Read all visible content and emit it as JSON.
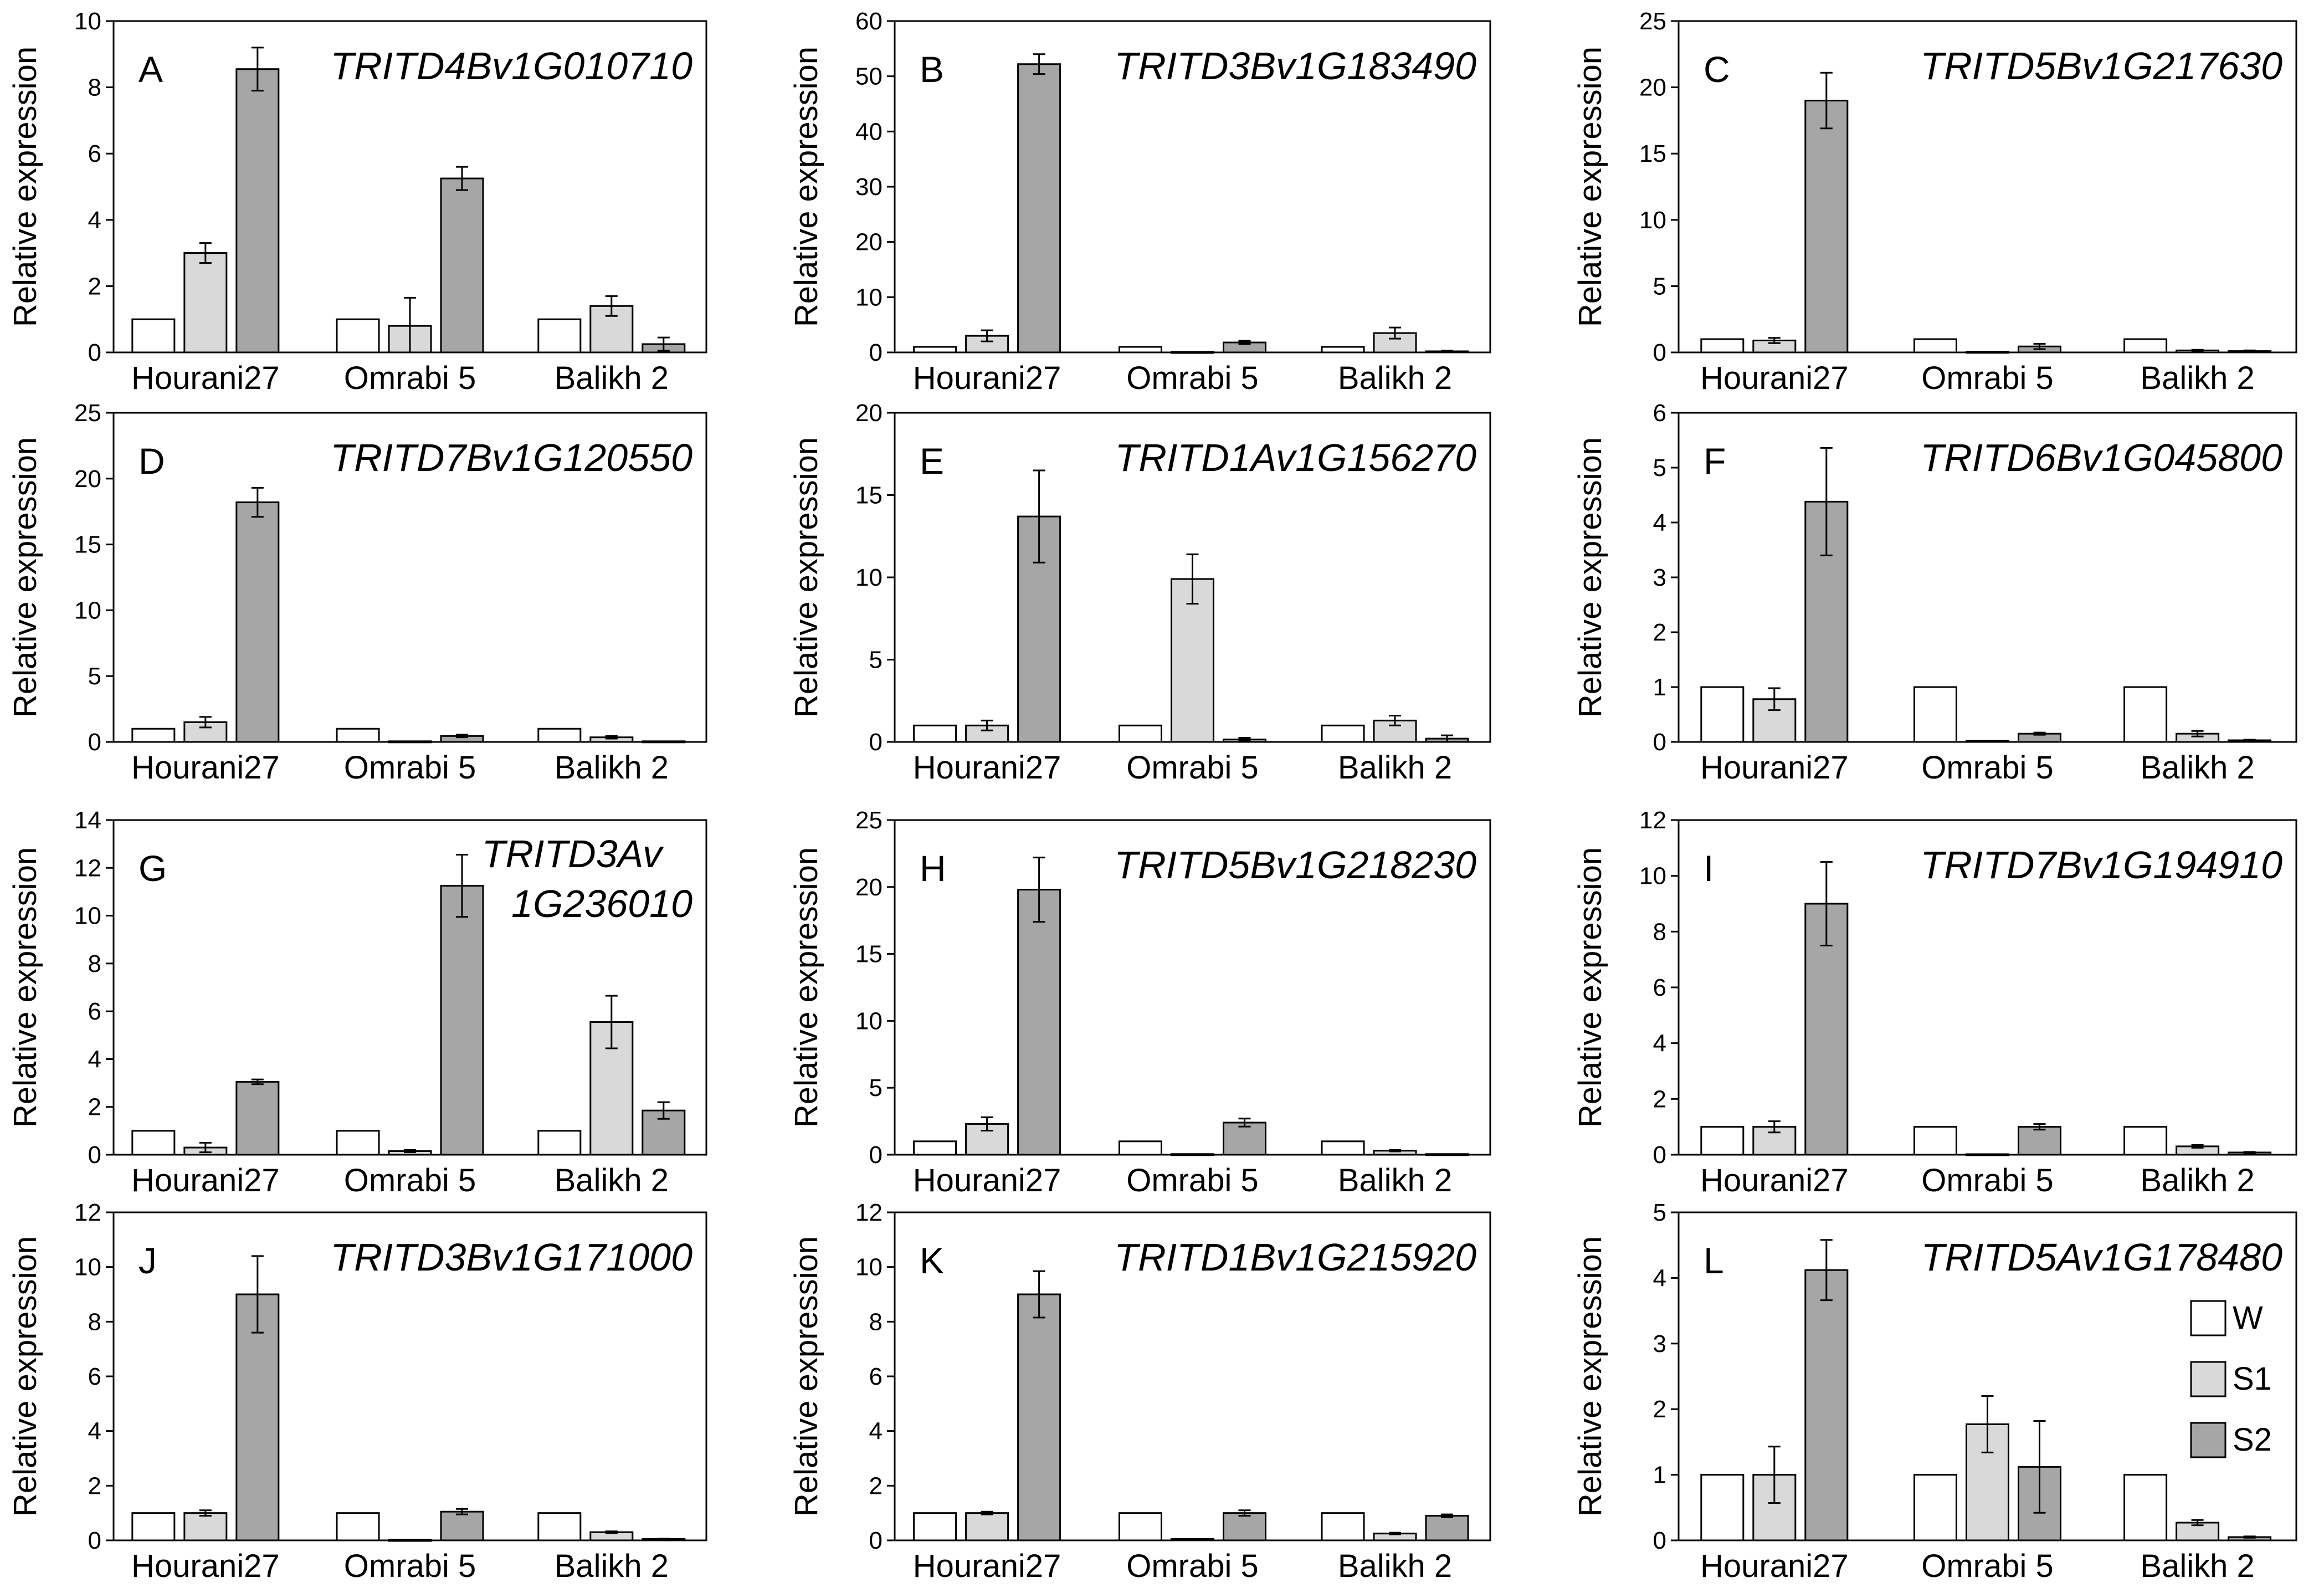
{
  "chart_data": [
    {
      "panel": "A",
      "gene": [
        "TRITD4Bv1G010710"
      ],
      "type": "bar",
      "ylabel": "Relative expression",
      "ylim": [
        0,
        10
      ],
      "yticks": [
        0,
        2,
        4,
        6,
        8,
        10
      ],
      "categories": [
        "Hourani27",
        "Omrabi 5",
        "Balikh 2"
      ],
      "series": [
        {
          "name": "W",
          "values": [
            1,
            1,
            1
          ],
          "errors": [
            0,
            0,
            0
          ]
        },
        {
          "name": "S1",
          "values": [
            3.0,
            0.8,
            1.4
          ],
          "errors": [
            0.3,
            0.85,
            0.3
          ]
        },
        {
          "name": "S2",
          "values": [
            8.55,
            5.25,
            0.25
          ],
          "errors": [
            0.65,
            0.35,
            0.2
          ]
        }
      ]
    },
    {
      "panel": "B",
      "gene": [
        "TRITD3Bv1G183490"
      ],
      "type": "bar",
      "ylabel": "Relative expression",
      "ylim": [
        0,
        60
      ],
      "yticks": [
        0,
        10,
        20,
        30,
        40,
        50,
        60
      ],
      "categories": [
        "Hourani27",
        "Omrabi 5",
        "Balikh 2"
      ],
      "series": [
        {
          "name": "W",
          "values": [
            1,
            1,
            1
          ],
          "errors": [
            0,
            0,
            0
          ]
        },
        {
          "name": "S1",
          "values": [
            3.0,
            0.1,
            3.5
          ],
          "errors": [
            1.0,
            0,
            1.0
          ]
        },
        {
          "name": "S2",
          "values": [
            52.2,
            1.8,
            0.2
          ],
          "errors": [
            1.8,
            0.3,
            0.1
          ]
        }
      ]
    },
    {
      "panel": "C",
      "gene": [
        "TRITD5Bv1G217630"
      ],
      "type": "bar",
      "ylabel": "Relative expression",
      "ylim": [
        0,
        25
      ],
      "yticks": [
        0,
        5,
        10,
        15,
        20,
        25
      ],
      "categories": [
        "Hourani27",
        "Omrabi 5",
        "Balikh 2"
      ],
      "series": [
        {
          "name": "W",
          "values": [
            1,
            1,
            1
          ],
          "errors": [
            0,
            0,
            0
          ]
        },
        {
          "name": "S1",
          "values": [
            0.9,
            0.05,
            0.15
          ],
          "errors": [
            0.2,
            0,
            0.05
          ]
        },
        {
          "name": "S2",
          "values": [
            19.0,
            0.45,
            0.1
          ],
          "errors": [
            2.1,
            0.2,
            0.05
          ]
        }
      ]
    },
    {
      "panel": "D",
      "gene": [
        "TRITD7Bv1G120550"
      ],
      "type": "bar",
      "ylabel": "Relative expression",
      "ylim": [
        0,
        25
      ],
      "yticks": [
        0,
        5,
        10,
        15,
        20,
        25
      ],
      "categories": [
        "Hourani27",
        "Omrabi 5",
        "Balikh 2"
      ],
      "series": [
        {
          "name": "W",
          "values": [
            1,
            1,
            1
          ],
          "errors": [
            0,
            0,
            0
          ]
        },
        {
          "name": "S1",
          "values": [
            1.5,
            0.05,
            0.35
          ],
          "errors": [
            0.4,
            0,
            0.1
          ]
        },
        {
          "name": "S2",
          "values": [
            18.2,
            0.45,
            0.05
          ],
          "errors": [
            1.1,
            0.1,
            0
          ]
        }
      ]
    },
    {
      "panel": "E",
      "gene": [
        "TRITD1Av1G156270"
      ],
      "type": "bar",
      "ylabel": "Relative expression",
      "ylim": [
        0,
        20
      ],
      "yticks": [
        0,
        5,
        10,
        15,
        20
      ],
      "categories": [
        "Hourani27",
        "Omrabi 5",
        "Balikh 2"
      ],
      "series": [
        {
          "name": "W",
          "values": [
            1,
            1,
            1
          ],
          "errors": [
            0,
            0,
            0
          ]
        },
        {
          "name": "S1",
          "values": [
            1.0,
            9.9,
            1.3
          ],
          "errors": [
            0.3,
            1.5,
            0.3
          ]
        },
        {
          "name": "S2",
          "values": [
            13.7,
            0.15,
            0.2
          ],
          "errors": [
            2.8,
            0.1,
            0.2
          ]
        }
      ]
    },
    {
      "panel": "F",
      "gene": [
        "TRITD6Bv1G045800"
      ],
      "type": "bar",
      "ylabel": "Relative expression",
      "ylim": [
        0,
        6
      ],
      "yticks": [
        0,
        1,
        2,
        3,
        4,
        5,
        6
      ],
      "categories": [
        "Hourani27",
        "Omrabi 5",
        "Balikh 2"
      ],
      "series": [
        {
          "name": "W",
          "values": [
            1,
            1,
            1
          ],
          "errors": [
            0,
            0,
            0
          ]
        },
        {
          "name": "S1",
          "values": [
            0.78,
            0.02,
            0.15
          ],
          "errors": [
            0.2,
            0,
            0.05
          ]
        },
        {
          "name": "S2",
          "values": [
            4.38,
            0.15,
            0.03
          ],
          "errors": [
            0.98,
            0.02,
            0.01
          ]
        }
      ]
    },
    {
      "panel": "G",
      "gene": [
        "TRITD3Av",
        "1G236010"
      ],
      "type": "bar",
      "ylabel": "Relative expression",
      "ylim": [
        0,
        14
      ],
      "yticks": [
        0,
        2,
        4,
        6,
        8,
        10,
        12,
        14
      ],
      "categories": [
        "Hourani27",
        "Omrabi 5",
        "Balikh 2"
      ],
      "series": [
        {
          "name": "W",
          "values": [
            1,
            1,
            1
          ],
          "errors": [
            0,
            0,
            0
          ]
        },
        {
          "name": "S1",
          "values": [
            0.3,
            0.15,
            5.55
          ],
          "errors": [
            0.2,
            0.05,
            1.1
          ]
        },
        {
          "name": "S2",
          "values": [
            3.05,
            11.25,
            1.85
          ],
          "errors": [
            0.1,
            1.3,
            0.35
          ]
        }
      ]
    },
    {
      "panel": "H",
      "gene": [
        "TRITD5Bv1G218230"
      ],
      "type": "bar",
      "ylabel": "Relative expression",
      "ylim": [
        0,
        25
      ],
      "yticks": [
        0,
        5,
        10,
        15,
        20,
        25
      ],
      "categories": [
        "Hourani27",
        "Omrabi 5",
        "Balikh 2"
      ],
      "series": [
        {
          "name": "W",
          "values": [
            1,
            1,
            1
          ],
          "errors": [
            0,
            0,
            0
          ]
        },
        {
          "name": "S1",
          "values": [
            2.3,
            0.05,
            0.3
          ],
          "errors": [
            0.5,
            0,
            0.05
          ]
        },
        {
          "name": "S2",
          "values": [
            19.8,
            2.4,
            0.05
          ],
          "errors": [
            2.4,
            0.3,
            0
          ]
        }
      ]
    },
    {
      "panel": "I",
      "gene": [
        "TRITD7Bv1G194910"
      ],
      "type": "bar",
      "ylabel": "Relative expression",
      "ylim": [
        0,
        12
      ],
      "yticks": [
        0,
        2,
        4,
        6,
        8,
        10,
        12
      ],
      "categories": [
        "Hourani27",
        "Omrabi 5",
        "Balikh 2"
      ],
      "series": [
        {
          "name": "W",
          "values": [
            1,
            1,
            1
          ],
          "errors": [
            0,
            0,
            0
          ]
        },
        {
          "name": "S1",
          "values": [
            1.0,
            0.02,
            0.3
          ],
          "errors": [
            0.2,
            0,
            0.05
          ]
        },
        {
          "name": "S2",
          "values": [
            9.0,
            1.0,
            0.08
          ],
          "errors": [
            1.5,
            0.1,
            0.02
          ]
        }
      ]
    },
    {
      "panel": "J",
      "gene": [
        "TRITD3Bv1G171000"
      ],
      "type": "bar",
      "ylabel": "Relative expression",
      "ylim": [
        0,
        12
      ],
      "yticks": [
        0,
        2,
        4,
        6,
        8,
        10,
        12
      ],
      "categories": [
        "Hourani27",
        "Omrabi 5",
        "Balikh 2"
      ],
      "series": [
        {
          "name": "W",
          "values": [
            1,
            1,
            1
          ],
          "errors": [
            0,
            0,
            0
          ]
        },
        {
          "name": "S1",
          "values": [
            1.0,
            0.02,
            0.3
          ],
          "errors": [
            0.1,
            0,
            0.03
          ]
        },
        {
          "name": "S2",
          "values": [
            9.0,
            1.05,
            0.05
          ],
          "errors": [
            1.4,
            0.1,
            0.01
          ]
        }
      ]
    },
    {
      "panel": "K",
      "gene": [
        "TRITD1Bv1G215920"
      ],
      "type": "bar",
      "ylabel": "Relative expression",
      "ylim": [
        0,
        12
      ],
      "yticks": [
        0,
        2,
        4,
        6,
        8,
        10,
        12
      ],
      "categories": [
        "Hourani27",
        "Omrabi 5",
        "Balikh 2"
      ],
      "series": [
        {
          "name": "W",
          "values": [
            1,
            1,
            1
          ],
          "errors": [
            0,
            0,
            0
          ]
        },
        {
          "name": "S1",
          "values": [
            1.0,
            0.05,
            0.25
          ],
          "errors": [
            0.05,
            0,
            0.03
          ]
        },
        {
          "name": "S2",
          "values": [
            9.0,
            1.0,
            0.9
          ],
          "errors": [
            0.85,
            0.1,
            0.05
          ]
        }
      ]
    },
    {
      "panel": "L",
      "gene": [
        "TRITD5Av1G178480"
      ],
      "type": "bar",
      "ylabel": "Relative expression",
      "ylim": [
        0,
        5
      ],
      "yticks": [
        0,
        1,
        2,
        3,
        4,
        5
      ],
      "categories": [
        "Hourani27",
        "Omrabi 5",
        "Balikh 2"
      ],
      "series": [
        {
          "name": "W",
          "values": [
            1,
            1,
            1
          ],
          "errors": [
            0,
            0,
            0
          ]
        },
        {
          "name": "S1",
          "values": [
            1.0,
            1.77,
            0.27
          ],
          "errors": [
            0.43,
            0.43,
            0.04
          ]
        },
        {
          "name": "S2",
          "values": [
            4.12,
            1.12,
            0.05
          ],
          "errors": [
            0.46,
            0.7,
            0.01
          ]
        }
      ],
      "legend": {
        "position": "right",
        "entries": [
          "W",
          "S1",
          "S2"
        ]
      }
    }
  ],
  "series_colors": {
    "W": "#ffffff",
    "S1": "#d9d9d9",
    "S2": "#a6a6a6"
  }
}
